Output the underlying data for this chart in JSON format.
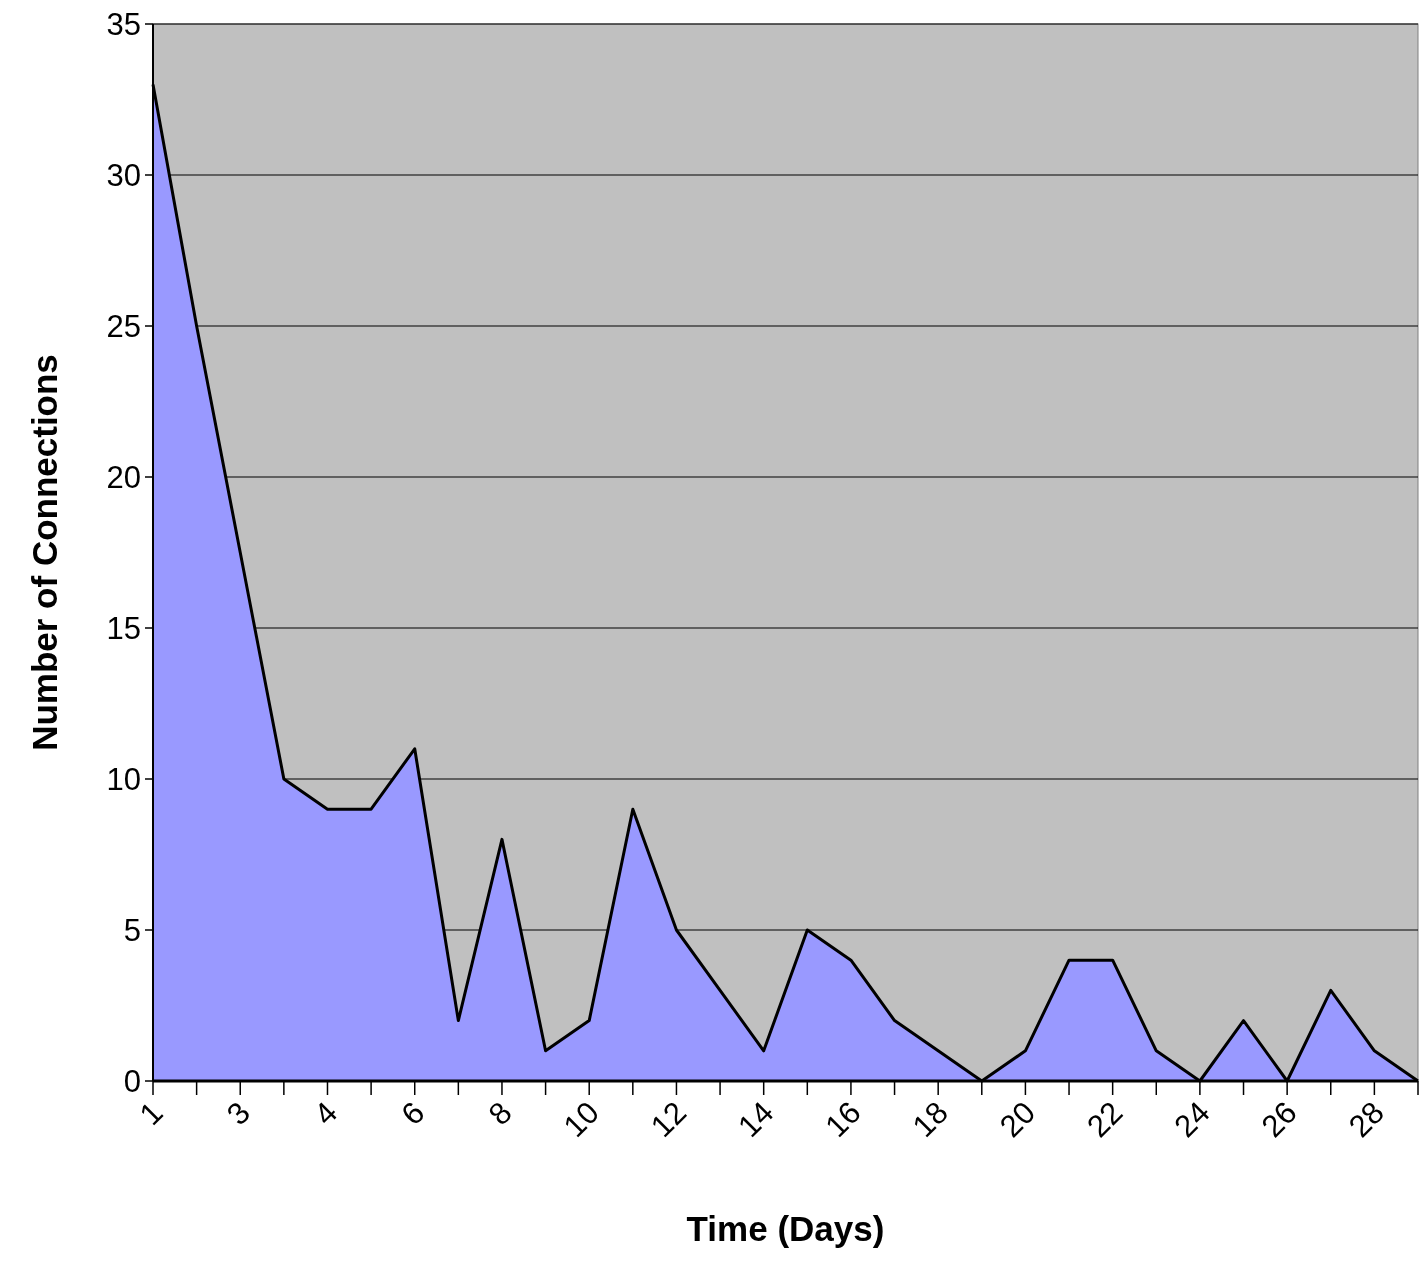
{
  "chart_data": {
    "type": "area",
    "xlabel": "Time (Days)",
    "ylabel": "Number of Connections",
    "categories": [
      "1",
      null,
      "3",
      null,
      "4",
      null,
      "6",
      null,
      "8",
      null,
      "10",
      null,
      "12",
      null,
      "14",
      null,
      "16",
      null,
      "18",
      null,
      "20",
      null,
      "22",
      null,
      "24",
      null,
      "26",
      null,
      "28",
      null
    ],
    "series": [
      {
        "color": "#9999ff",
        "values": [
          33,
          25,
          17.5,
          10,
          9,
          9,
          11,
          2,
          8,
          1,
          2,
          9,
          5,
          3,
          1,
          5,
          4,
          2,
          1,
          0,
          1,
          4,
          4,
          1,
          0,
          2,
          0,
          3,
          1,
          0
        ]
      }
    ],
    "ylim": [
      0,
      35
    ],
    "yticks": [
      0,
      5,
      10,
      15,
      20,
      25,
      30,
      35
    ],
    "grid": "y"
  }
}
